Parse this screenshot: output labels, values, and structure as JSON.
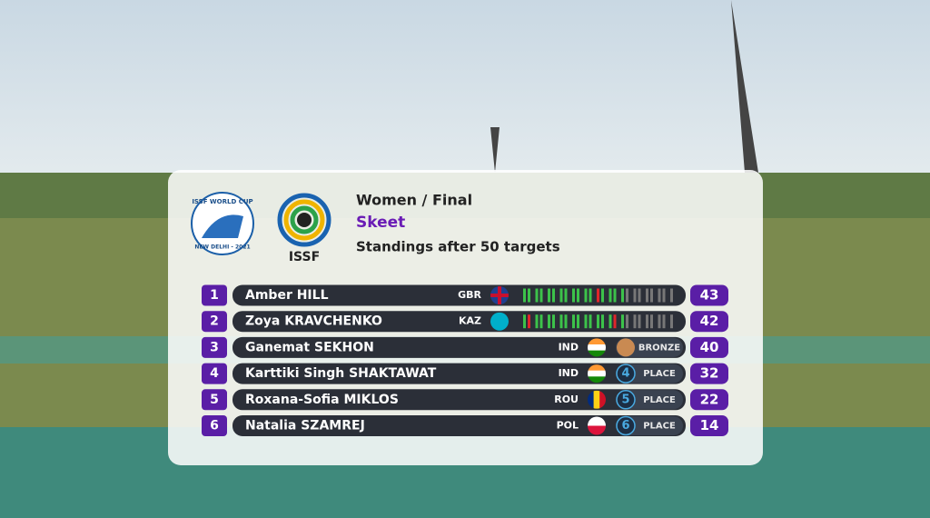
{
  "event_logo": {
    "line1": "ISSF WORLD CUP",
    "line2": "NEW DELHI - 2021"
  },
  "org_logo": {
    "label": "ISSF"
  },
  "header": {
    "title": "Women / Final",
    "discipline": "Skeet",
    "subtitle": "Standings after 50 targets"
  },
  "standings": [
    {
      "rank": "1",
      "name": "Amber HILL",
      "country": "GBR",
      "score": "43"
    },
    {
      "rank": "2",
      "name": "Zoya KRAVCHENKO",
      "country": "KAZ",
      "score": "42"
    },
    {
      "rank": "3",
      "name": "Ganemat SEKHON",
      "country": "IND",
      "status": {
        "label": "BRONZE"
      },
      "score": "40"
    },
    {
      "rank": "4",
      "name": "Karttiki Singh SHAKTAWAT",
      "country": "IND",
      "status": {
        "number": "4",
        "label": "PLACE"
      },
      "score": "32"
    },
    {
      "rank": "5",
      "name": "Roxana-Sofia MIKLOS",
      "country": "ROU",
      "status": {
        "number": "5",
        "label": "PLACE"
      },
      "score": "22"
    },
    {
      "rank": "6",
      "name": "Natalia SZAMREJ",
      "country": "POL",
      "status": {
        "number": "6",
        "label": "PLACE"
      },
      "score": "14"
    }
  ]
}
